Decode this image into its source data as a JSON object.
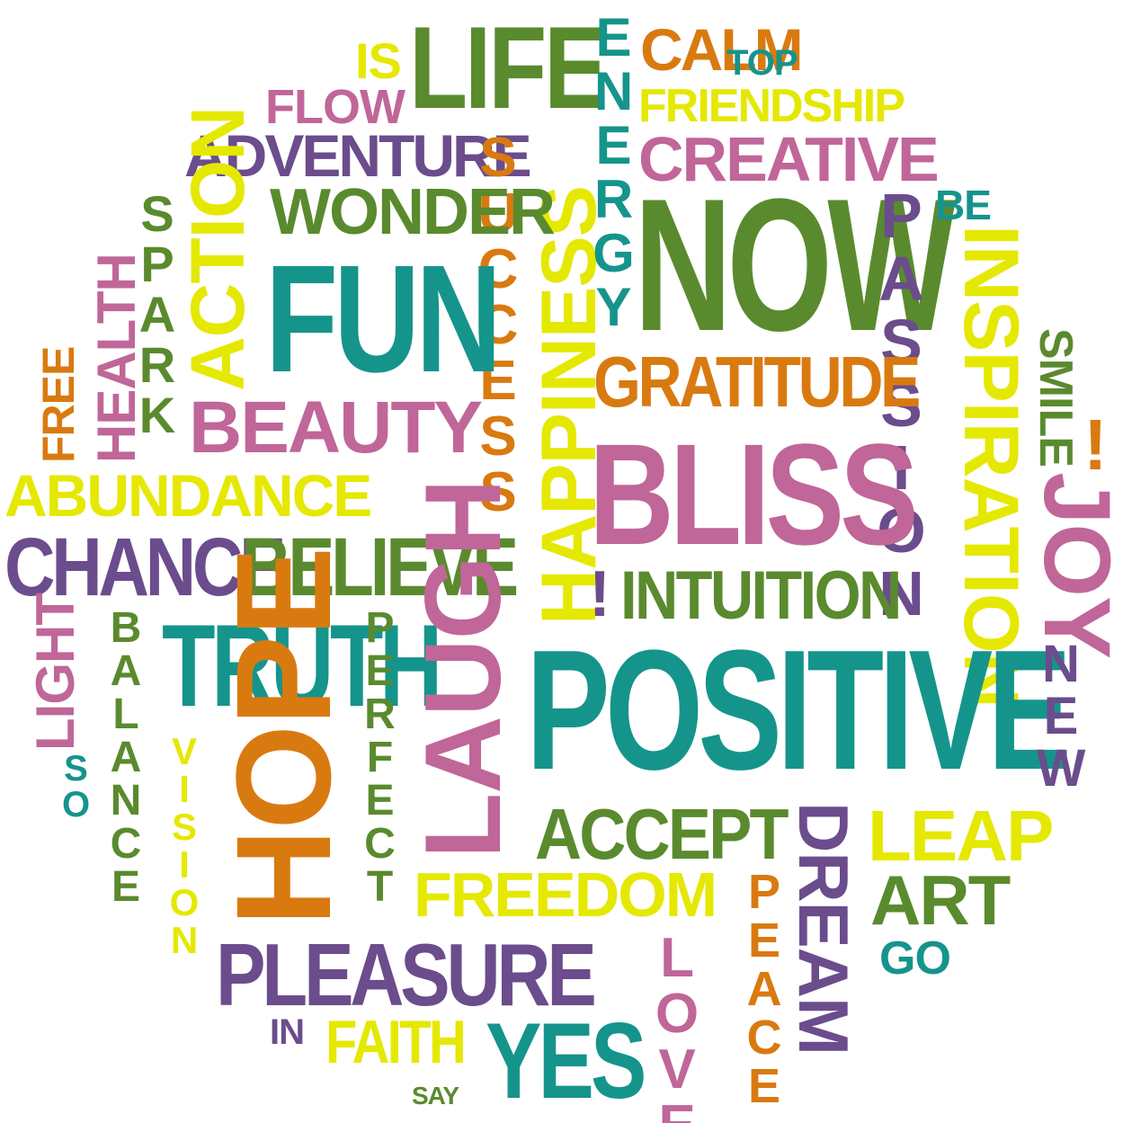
{
  "colors": {
    "purple": "#6b4c8c",
    "green": "#5a8a2e",
    "teal": "#15948c",
    "yellow": "#e5e800",
    "orange": "#d97a10",
    "pink": "#c06699"
  },
  "words": {
    "is": "IS",
    "life": "LIFE",
    "happiness": "HAPPINESS",
    "energy": "ENERGY",
    "calm": "CALM",
    "top": "TOP",
    "flow": "FLOW",
    "friendship": "FRIENDSHIP",
    "adventure": "ADVENTURE",
    "creative": "CREATIVE",
    "success": "SUCCESS",
    "spark": "SPARK",
    "action": "ACTION",
    "wonder": "WONDER",
    "now": "NOW",
    "be": "BE",
    "passion": "PASSION",
    "inspiration": "INSPIRATION",
    "health": "HEALTH",
    "fun": "FUN",
    "free": "FREE",
    "smile": "SMILE",
    "gratitude": "GRATITUDE",
    "exclaim_right": "!",
    "beauty": "BEAUTY",
    "bliss": "BLISS",
    "joy": "JOY",
    "abundance": "ABUNDANCE",
    "chance": "CHANCE",
    "believe": "BELIEVE",
    "exclaim_mid": "!",
    "intuition": "INTUITION",
    "light": "LIGHT",
    "balance": "BALANCE",
    "truth": "TRUTH",
    "perfect": "PERFECT",
    "laugh": "LAUGH",
    "positive": "POSITIVE",
    "new": "NEW",
    "so": "SO",
    "vision": "VISION",
    "hope": "HOPE",
    "accept": "ACCEPT",
    "dream": "DREAM",
    "leap": "LEAP",
    "freedom": "FREEDOM",
    "peace": "PEACE",
    "art": "ART",
    "go": "GO",
    "pleasure": "PLEASURE",
    "love": "LOVE",
    "in": "IN",
    "faith": "FAITH",
    "yes": "YES",
    "say": "SAY"
  }
}
